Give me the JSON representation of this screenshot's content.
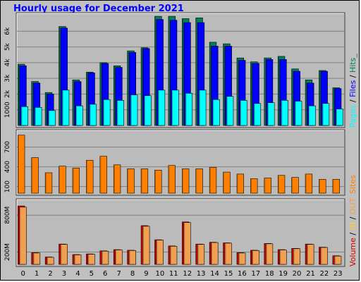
{
  "title": "Hourly usage for December 2021",
  "colors": {
    "background": "#c0c0c0",
    "panel": "#bbbbbb",
    "title": "#0000ff",
    "hits": "#00805c",
    "files": "#0000ff",
    "pages": "#00ffff",
    "sites": "#ff8000",
    "volume": "#ff0000",
    "out": "#ffcc33",
    "in": "#f0a050"
  },
  "legend": {
    "top": {
      "pages": "Pages",
      "sep1": " / ",
      "files": "Files",
      "sep2": " / ",
      "hits": "Hits_"
    },
    "middle": {
      "sites": "Sites"
    },
    "bottom": {
      "volume": "Volume",
      "sep1": " / ",
      "in": "IN",
      "sep2": " / ",
      "out": "OUT"
    }
  },
  "chart_data": {
    "type": "bar",
    "title": "Hourly usage for December 2021",
    "categories": [
      "0",
      "1",
      "2",
      "3",
      "4",
      "5",
      "6",
      "7",
      "8",
      "9",
      "10",
      "11",
      "12",
      "13",
      "14",
      "15",
      "16",
      "17",
      "18",
      "19",
      "20",
      "21",
      "22",
      "23"
    ],
    "panels": [
      {
        "id": "hits-files-pages",
        "ylim": [
          0,
          7000
        ],
        "yticks": [
          1000,
          2000,
          3000,
          4000,
          5000,
          6000
        ],
        "ytick_labels": [
          "1000",
          "2k",
          "3k",
          "4k",
          "5k",
          "6k"
        ],
        "series": [
          {
            "name": "Hits_",
            "color": "#00805c",
            "values": [
              3900,
              2800,
              2100,
              6300,
              2900,
              3400,
              4000,
              3800,
              4750,
              4950,
              6950,
              6950,
              6800,
              6850,
              5300,
              5200,
              4300,
              4050,
              4300,
              4400,
              3600,
              2900,
              3500,
              2400
            ]
          },
          {
            "name": "Files",
            "color": "#0000ff",
            "values": [
              3800,
              2700,
              2000,
              6200,
              2800,
              3350,
              3950,
              3700,
              4650,
              4900,
              6750,
              6700,
              6550,
              6550,
              5050,
              5050,
              4150,
              3950,
              4200,
              4200,
              3450,
              2700,
              3450,
              2350
            ]
          },
          {
            "name": "Pages",
            "color": "#00ffff",
            "values": [
              1200,
              1150,
              950,
              2250,
              1250,
              1350,
              1650,
              1600,
              1950,
              1900,
              2250,
              2250,
              2050,
              2250,
              1650,
              1850,
              1600,
              1400,
              1450,
              1600,
              1550,
              1250,
              1400,
              1050
            ]
          }
        ]
      },
      {
        "id": "sites",
        "ylim": [
          0,
          920
        ],
        "yticks": [
          100,
          400,
          700
        ],
        "ytick_labels": [
          "100",
          "400",
          "700"
        ],
        "series": [
          {
            "name": "Sites",
            "color": "#ff8000",
            "values": [
              880,
              540,
              310,
              410,
              380,
              500,
              560,
              430,
              370,
              370,
              350,
              420,
              370,
              370,
              390,
              320,
              290,
              220,
              230,
              270,
              240,
              290,
              210,
              210
            ]
          }
        ]
      },
      {
        "id": "volume",
        "ylim": [
          0,
          1020
        ],
        "yticks": [
          200,
          800
        ],
        "ytick_labels": [
          "200M",
          "800M"
        ],
        "series": [
          {
            "name": "Volume",
            "color": "#ff0000",
            "values": [
              950,
              190,
              120,
              330,
              160,
              170,
              220,
              240,
              230,
              630,
              400,
              300,
              690,
              330,
              360,
              350,
              190,
              230,
              340,
              240,
              260,
              330,
              280,
              140
            ]
          },
          {
            "name": "IN",
            "color": "#f0a050",
            "values": [
              930,
              185,
              115,
              325,
              155,
              165,
              215,
              235,
              225,
              620,
              395,
              295,
              680,
              325,
              355,
              345,
              185,
              225,
              335,
              235,
              255,
              325,
              275,
              135
            ]
          }
        ]
      }
    ]
  }
}
